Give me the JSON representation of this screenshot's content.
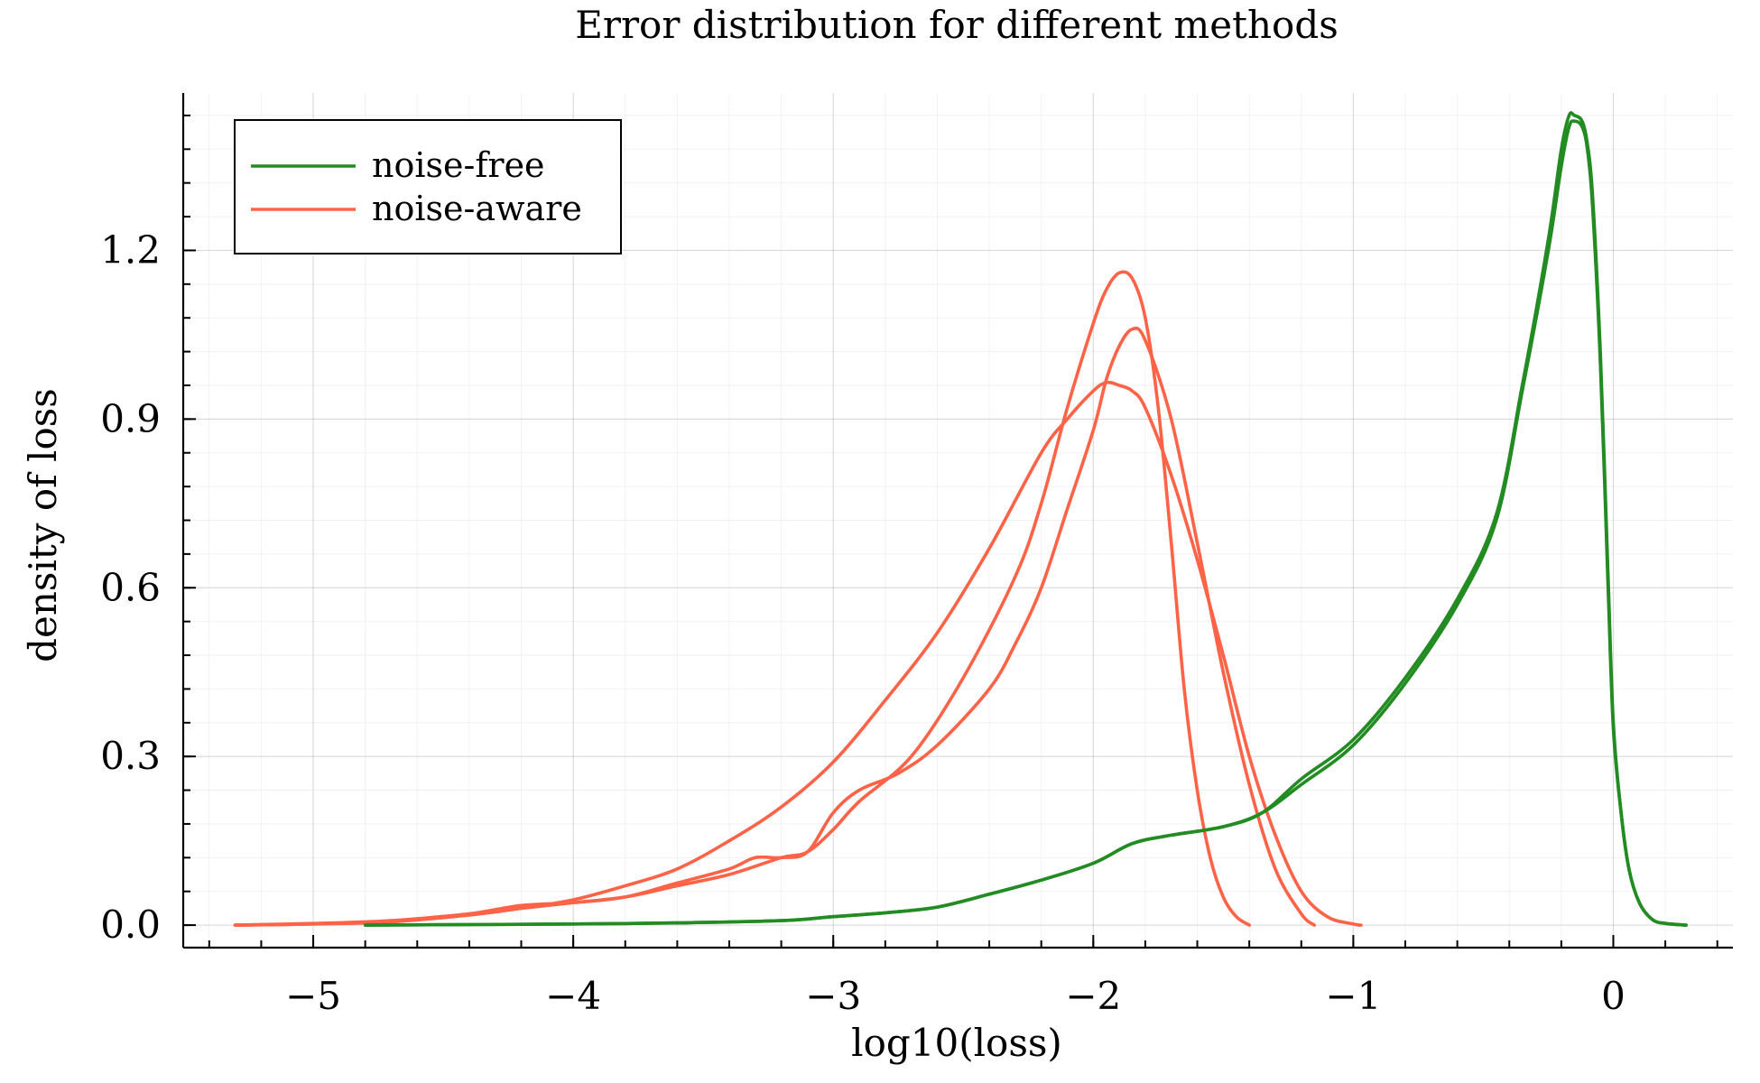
{
  "chart_data": {
    "type": "line",
    "title": "Error distribution for different methods",
    "xlabel": "log10(loss)",
    "ylabel": "density of loss",
    "xlim": [
      -5.5,
      0.46
    ],
    "ylim": [
      -0.04,
      1.48
    ],
    "x_ticks": [
      -5,
      -4,
      -3,
      -2,
      -1,
      0
    ],
    "x_tick_labels": [
      "−5",
      "−4",
      "−3",
      "−2",
      "−1",
      "0"
    ],
    "y_ticks": [
      0.0,
      0.3,
      0.6,
      0.9,
      1.2
    ],
    "y_tick_labels": [
      "0.0",
      "0.3",
      "0.6",
      "0.9",
      "1.2"
    ],
    "grid": true,
    "legend_position": "top-left",
    "legend": [
      {
        "label": "noise-free",
        "color": "#228b22"
      },
      {
        "label": "noise-aware",
        "color": "#ff6347"
      }
    ],
    "series": [
      {
        "name": "noise-free",
        "color": "#228b22",
        "x": [
          -4.8,
          -4.4,
          -4.0,
          -3.6,
          -3.2,
          -3.0,
          -2.8,
          -2.6,
          -2.4,
          -2.2,
          -2.0,
          -1.85,
          -1.7,
          -1.5,
          -1.35,
          -1.2,
          -1.0,
          -0.8,
          -0.6,
          -0.45,
          -0.35,
          -0.25,
          -0.2,
          -0.17,
          -0.15,
          -0.12,
          -0.1,
          -0.08,
          -0.05,
          -0.02,
          0.0,
          0.03,
          0.06,
          0.1,
          0.15,
          0.2,
          0.28
        ],
        "y": [
          0.0,
          0.001,
          0.002,
          0.004,
          0.008,
          0.015,
          0.022,
          0.032,
          0.055,
          0.08,
          0.11,
          0.145,
          0.16,
          0.175,
          0.2,
          0.25,
          0.32,
          0.43,
          0.57,
          0.72,
          0.95,
          1.2,
          1.35,
          1.42,
          1.43,
          1.42,
          1.38,
          1.28,
          1.0,
          0.6,
          0.35,
          0.2,
          0.1,
          0.04,
          0.01,
          0.003,
          0.0
        ]
      },
      {
        "name": "noise-free",
        "color": "#228b22",
        "x": [
          -4.8,
          -4.4,
          -4.0,
          -3.6,
          -3.2,
          -3.0,
          -2.8,
          -2.6,
          -2.4,
          -2.2,
          -2.0,
          -1.85,
          -1.7,
          -1.5,
          -1.35,
          -1.2,
          -1.0,
          -0.8,
          -0.6,
          -0.45,
          -0.35,
          -0.25,
          -0.2,
          -0.17,
          -0.15,
          -0.12,
          -0.1,
          -0.08,
          -0.05,
          -0.02,
          0.0,
          0.03,
          0.06,
          0.1,
          0.15,
          0.2,
          0.28
        ],
        "y": [
          0.0,
          0.001,
          0.002,
          0.004,
          0.008,
          0.015,
          0.022,
          0.032,
          0.055,
          0.08,
          0.11,
          0.145,
          0.16,
          0.175,
          0.2,
          0.26,
          0.33,
          0.44,
          0.58,
          0.73,
          0.96,
          1.22,
          1.38,
          1.44,
          1.44,
          1.43,
          1.39,
          1.3,
          1.02,
          0.62,
          0.36,
          0.2,
          0.1,
          0.04,
          0.01,
          0.003,
          0.0
        ]
      },
      {
        "name": "noise-aware",
        "color": "#ff6347",
        "x": [
          -5.3,
          -5.0,
          -4.7,
          -4.4,
          -4.2,
          -4.0,
          -3.8,
          -3.6,
          -3.4,
          -3.2,
          -3.0,
          -2.8,
          -2.6,
          -2.4,
          -2.2,
          -2.1,
          -2.0,
          -1.95,
          -1.9,
          -1.85,
          -1.8,
          -1.7,
          -1.6,
          -1.5,
          -1.4,
          -1.3,
          -1.2,
          -1.1,
          -1.0,
          -0.97
        ],
        "y": [
          0.0,
          0.002,
          0.006,
          0.018,
          0.03,
          0.045,
          0.07,
          0.1,
          0.15,
          0.21,
          0.29,
          0.4,
          0.52,
          0.67,
          0.84,
          0.9,
          0.95,
          0.965,
          0.96,
          0.95,
          0.92,
          0.8,
          0.65,
          0.48,
          0.3,
          0.16,
          0.06,
          0.015,
          0.002,
          0.0
        ]
      },
      {
        "name": "noise-aware",
        "color": "#ff6347",
        "x": [
          -5.3,
          -5.0,
          -4.7,
          -4.4,
          -4.2,
          -4.0,
          -3.8,
          -3.6,
          -3.4,
          -3.2,
          -3.1,
          -3.0,
          -2.9,
          -2.7,
          -2.5,
          -2.3,
          -2.2,
          -2.1,
          -2.0,
          -1.95,
          -1.9,
          -1.85,
          -1.8,
          -1.75,
          -1.7,
          -1.65,
          -1.6,
          -1.55,
          -1.5,
          -1.45,
          -1.4
        ],
        "y": [
          0.0,
          0.003,
          0.008,
          0.02,
          0.03,
          0.04,
          0.05,
          0.07,
          0.09,
          0.12,
          0.13,
          0.17,
          0.22,
          0.3,
          0.44,
          0.62,
          0.75,
          0.92,
          1.07,
          1.13,
          1.16,
          1.15,
          1.08,
          0.92,
          0.68,
          0.42,
          0.24,
          0.12,
          0.05,
          0.015,
          0.0
        ]
      },
      {
        "name": "noise-aware",
        "color": "#ff6347",
        "x": [
          -5.3,
          -5.0,
          -4.7,
          -4.4,
          -4.2,
          -4.0,
          -3.8,
          -3.6,
          -3.4,
          -3.3,
          -3.2,
          -3.1,
          -3.0,
          -2.9,
          -2.75,
          -2.6,
          -2.4,
          -2.3,
          -2.2,
          -2.1,
          -2.0,
          -1.95,
          -1.9,
          -1.85,
          -1.8,
          -1.7,
          -1.6,
          -1.5,
          -1.4,
          -1.3,
          -1.2,
          -1.15
        ],
        "y": [
          0.0,
          0.002,
          0.006,
          0.02,
          0.035,
          0.04,
          0.05,
          0.075,
          0.1,
          0.12,
          0.12,
          0.13,
          0.2,
          0.24,
          0.27,
          0.32,
          0.42,
          0.5,
          0.6,
          0.74,
          0.88,
          0.97,
          1.03,
          1.06,
          1.04,
          0.9,
          0.68,
          0.45,
          0.25,
          0.1,
          0.02,
          0.0
        ]
      }
    ]
  }
}
